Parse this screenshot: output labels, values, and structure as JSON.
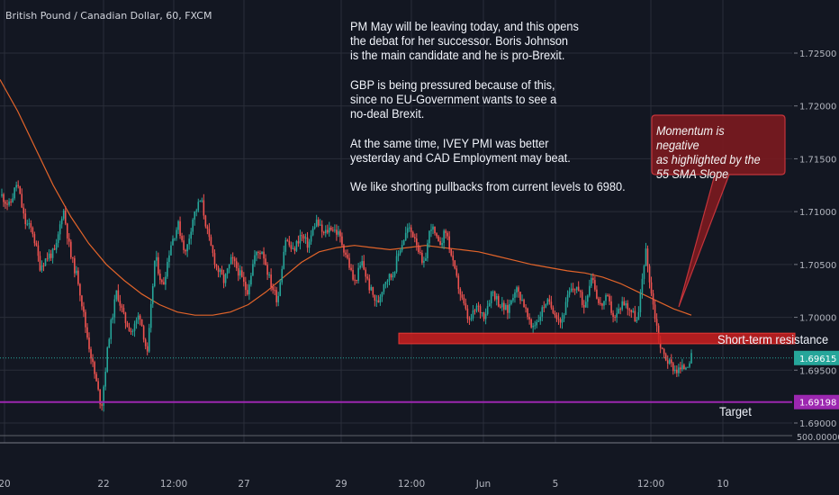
{
  "header": {
    "symbol_title": "British Pound / Canadian Dollar, 60, FXCM"
  },
  "annotations": {
    "note_paragraphs": [
      "PM May will be leaving today, and this opens\nthe debat for her successor. Boris Johnson\nis the main candidate and he is pro-Brexit.",
      "GBP is being pressured because of this,\nsince no EU-Government wants to see a\nno-deal Brexit.",
      "At the same time, IVEY PMI was better\nyesterday and CAD Employment may beat.",
      "We like shorting pullbacks from current levels to 6980."
    ],
    "callout": "Momentum is negative\nas highlighted by the\n55 SMA Slope",
    "resistance_label": "Short-term resistance",
    "target_label": "Target"
  },
  "colors": {
    "background": "#131722",
    "grid": "#2a2e39",
    "candle_up": "#26a69a",
    "candle_down": "#ef5350",
    "sma": "#e2642a",
    "resistance_zone": "#cc1f1f",
    "callout_fill": "#7a1a20",
    "callout_border": "#c4343b",
    "target_line": "#9c27b0",
    "current_price_badge": "#26a69a",
    "target_badge": "#9c27b0",
    "axis_text": "#b2b5be"
  },
  "chart_data": {
    "type": "candlestick",
    "symbol": "British Pound / Canadian Dollar",
    "interval": "60",
    "ylim": [
      1.6895,
      1.7277
    ],
    "y_ticks": [
      "1.72500",
      "1.72000",
      "1.71500",
      "1.71000",
      "1.70500",
      "1.70000",
      "1.69500",
      "1.69000"
    ],
    "y_tick_values": [
      1.725,
      1.72,
      1.715,
      1.71,
      1.705,
      1.7,
      1.695,
      1.69
    ],
    "extra_axis_label": "500.00000",
    "x_ticks": [
      "20",
      "22",
      "12:00",
      "27",
      "29",
      "12:00",
      "Jun",
      "5",
      "12:00",
      "10"
    ],
    "current_price": 1.69615,
    "current_price_label": "1.69615",
    "target_price": 1.69198,
    "target_price_label": "1.69198",
    "resistance_zone": [
      1.6975,
      1.6985
    ],
    "sma_period": 55,
    "sma_values": [
      1.7225,
      1.7195,
      1.716,
      1.7125,
      1.7095,
      1.707,
      1.705,
      1.7035,
      1.7022,
      1.7012,
      1.7005,
      1.7002,
      1.7002,
      1.7005,
      1.7012,
      1.7024,
      1.7038,
      1.7052,
      1.7062,
      1.7066,
      1.7068,
      1.7066,
      1.7064,
      1.7066,
      1.7068,
      1.7066,
      1.7064,
      1.7062,
      1.7058,
      1.7054,
      1.705,
      1.7047,
      1.7044,
      1.7042,
      1.7038,
      1.7032,
      1.7024,
      1.7016,
      1.7008,
      1.7002
    ],
    "price_path": [
      1.7115,
      1.7105,
      1.7128,
      1.709,
      1.7082,
      1.7048,
      1.7058,
      1.7062,
      1.7104,
      1.7058,
      1.7034,
      1.6988,
      1.695,
      1.6915,
      1.6983,
      1.7025,
      1.6998,
      1.6986,
      1.7004,
      1.6964,
      1.7058,
      1.7028,
      1.7068,
      1.7088,
      1.706,
      1.7096,
      1.7112,
      1.7074,
      1.7048,
      1.7034,
      1.7055,
      1.7042,
      1.7024,
      1.7058,
      1.7064,
      1.7034,
      1.7016,
      1.7075,
      1.7062,
      1.7078,
      1.7068,
      1.7092,
      1.7078,
      1.7086,
      1.7078,
      1.7058,
      1.7032,
      1.7052,
      1.7028,
      1.7012,
      1.7036,
      1.704,
      1.7066,
      1.7084,
      1.7076,
      1.7045,
      1.7088,
      1.7068,
      1.7082,
      1.7046,
      1.7018,
      1.6995,
      1.701,
      1.7002,
      1.7026,
      1.7012,
      1.7006,
      1.7028,
      1.7016,
      1.699,
      1.6998,
      1.7015,
      1.7008,
      1.6995,
      1.7022,
      1.703,
      1.701,
      1.7042,
      1.701,
      1.7018,
      1.6998,
      1.7015,
      1.7008,
      1.6995,
      1.7065,
      1.7012,
      1.697,
      1.6958,
      1.695,
      1.6952,
      1.6962
    ]
  }
}
